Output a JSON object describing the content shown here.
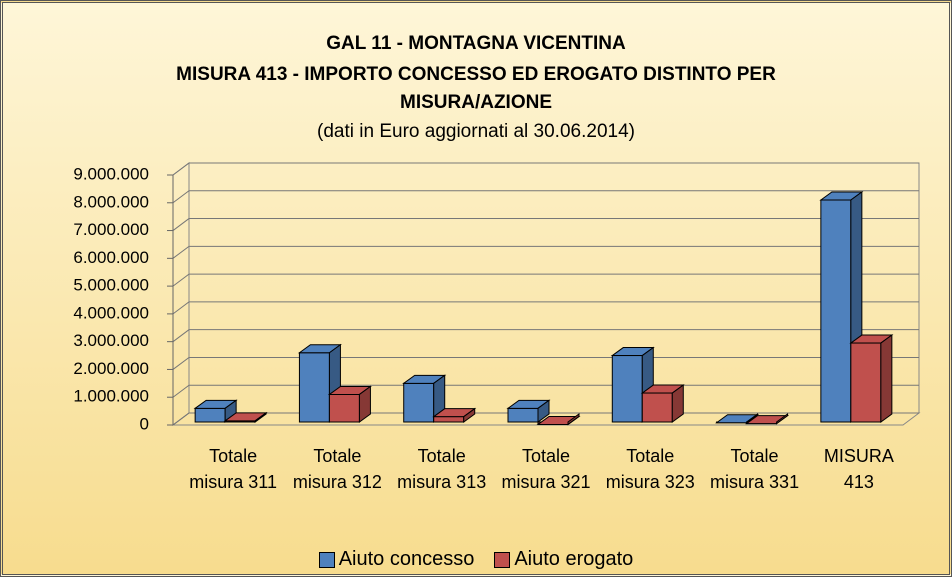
{
  "chart_data": {
    "type": "bar3d",
    "title": "GAL 11 - MONTAGNA VICENTINA",
    "subtitle": "MISURA 413 - IMPORTO CONCESSO ED EROGATO DISTINTO PER MISURA/AZIONE",
    "note": "(dati in Euro aggiornati al 30.06.2014)",
    "categories": [
      "Totale misura 311",
      "Totale misura 312",
      "Totale misura 313",
      "Totale misura 321",
      "Totale misura 323",
      "Totale misura 331",
      "MISURA 413"
    ],
    "series": [
      {
        "name": "Aiuto concesso",
        "color": "#4f81bd",
        "values": [
          600000,
          2600000,
          1500000,
          600000,
          2500000,
          80000,
          8100000
        ]
      },
      {
        "name": "Aiuto erogato",
        "color": "#c0504d",
        "values": [
          150000,
          1100000,
          300000,
          20000,
          1150000,
          50000,
          2950000
        ]
      }
    ],
    "ylim": [
      0,
      9000000
    ],
    "yticks": [
      0,
      {
        "value": 1000000,
        "label": "1.000.000"
      },
      {
        "value": 2000000,
        "label": "2.000.000"
      },
      {
        "value": 3000000,
        "label": "3.000.000"
      },
      {
        "value": 4000000,
        "label": "4.000.000"
      },
      {
        "value": 5000000,
        "label": "5.000.000"
      },
      {
        "value": 6000000,
        "label": "6.000.000"
      },
      {
        "value": 7000000,
        "label": "7.000.000"
      },
      {
        "value": 8000000,
        "label": "8.000.000"
      },
      {
        "value": 9000000,
        "label": "9.000.000"
      }
    ],
    "grid": true,
    "legend": "bottom"
  }
}
